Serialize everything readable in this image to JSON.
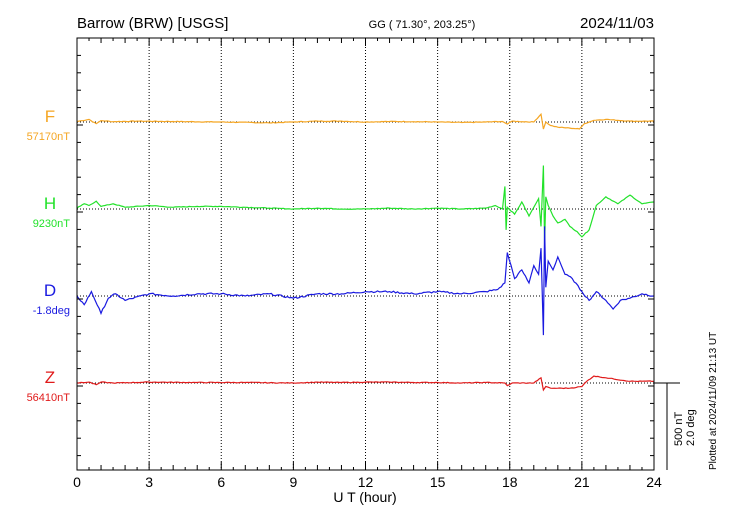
{
  "chart_data": {
    "type": "line",
    "title_left": "Barrow (BRW)  [USGS]",
    "title_center": "GG ( 71.30°, 203.25°)",
    "title_right": "2024/11/03",
    "xlabel": "U T (hour)",
    "xlim": [
      0,
      24
    ],
    "xticks": [
      0,
      3,
      6,
      9,
      12,
      15,
      18,
      21,
      24
    ],
    "xtick_labels": [
      "0",
      "3",
      "6",
      "9",
      "12",
      "15",
      "18",
      "21",
      "24"
    ],
    "grid_hours": [
      3,
      6,
      9,
      12,
      15,
      18,
      21
    ],
    "scale_label_1": "500 nT",
    "scale_label_2": "2.0 deg",
    "scale_nT": 500,
    "side_note": "Plotted at 2024/11/09 21:13 UT",
    "series": [
      {
        "name": "F",
        "color": "#f5a623",
        "baseline_label": "57170nT",
        "unit": "nT",
        "x": [
          0,
          0.5,
          0.8,
          1.0,
          1.5,
          2.5,
          4,
          6,
          8,
          9,
          10,
          11,
          12,
          13,
          14,
          15,
          16,
          17,
          17.7,
          17.9,
          18.1,
          18.5,
          19,
          19.3,
          19.4,
          19.5,
          19.7,
          20,
          20.5,
          20.9,
          21.1,
          21.5,
          22,
          23,
          24
        ],
        "values": [
          3,
          15,
          -10,
          8,
          2,
          5,
          3,
          0,
          -5,
          0,
          5,
          5,
          0,
          3,
          2,
          0,
          -3,
          0,
          3,
          -12,
          5,
          2,
          0,
          45,
          -40,
          0,
          -20,
          -30,
          -35,
          -40,
          -10,
          10,
          15,
          5,
          5
        ]
      },
      {
        "name": "H",
        "color": "#22e22a",
        "baseline_label": "9230nT",
        "unit": "nT",
        "x": [
          0,
          0.3,
          0.5,
          0.8,
          1.0,
          1.5,
          2,
          3,
          4,
          5,
          6,
          7,
          8,
          9,
          10,
          11,
          12,
          13,
          14,
          15,
          16,
          17,
          17.4,
          17.7,
          17.8,
          17.85,
          17.9,
          18.2,
          18.5,
          18.8,
          19.0,
          19.2,
          19.3,
          19.4,
          19.45,
          19.5,
          19.6,
          19.8,
          20,
          20.3,
          20.5,
          20.8,
          21,
          21.3,
          21.6,
          22,
          22.5,
          23,
          23.5,
          24
        ],
        "values": [
          5,
          30,
          20,
          45,
          15,
          30,
          10,
          20,
          10,
          15,
          15,
          10,
          5,
          0,
          5,
          0,
          0,
          5,
          0,
          5,
          0,
          5,
          20,
          0,
          130,
          -120,
          10,
          -30,
          40,
          -40,
          10,
          60,
          -100,
          250,
          -200,
          70,
          20,
          -40,
          -80,
          -60,
          -100,
          -130,
          -160,
          -120,
          20,
          70,
          30,
          80,
          30,
          40
        ]
      },
      {
        "name": "D",
        "color": "#1a1ae0",
        "baseline_label": "-1.8deg",
        "unit": "deg",
        "x": [
          0,
          0.3,
          0.6,
          1.0,
          1.3,
          1.6,
          2,
          3,
          4,
          5,
          6,
          7,
          8,
          9,
          10,
          11,
          12,
          13,
          14,
          15,
          16,
          17,
          17.5,
          17.8,
          17.9,
          18.2,
          18.5,
          18.8,
          19.0,
          19.2,
          19.3,
          19.4,
          19.45,
          19.5,
          19.6,
          19.8,
          20,
          20.3,
          20.6,
          21,
          21.3,
          21.6,
          22,
          22.3,
          22.6,
          23,
          23.5,
          24
        ],
        "values": [
          0,
          -0.2,
          0.1,
          -0.4,
          -0.05,
          0.05,
          -0.1,
          0.05,
          0,
          0.05,
          0.05,
          0,
          0.05,
          -0.05,
          0.05,
          0.05,
          0.1,
          0.1,
          0.05,
          0.1,
          0.05,
          0.1,
          0.15,
          0.3,
          1.0,
          0.4,
          0.6,
          0.3,
          0.7,
          0.5,
          1.1,
          -0.9,
          1.6,
          0.2,
          0.8,
          0.6,
          0.9,
          0.5,
          0.4,
          0.1,
          -0.1,
          0.1,
          -0.1,
          -0.3,
          -0.1,
          -0.05,
          0.05,
          0
        ]
      },
      {
        "name": "Z",
        "color": "#e01a1a",
        "baseline_label": "56410nT",
        "unit": "nT",
        "x": [
          0,
          0.5,
          0.8,
          1.0,
          1.5,
          3,
          5,
          7,
          9,
          10,
          11,
          12,
          13,
          14,
          15,
          16,
          17,
          17.8,
          17.9,
          18.1,
          19,
          19.3,
          19.4,
          19.5,
          19.7,
          20,
          20.5,
          21,
          21.2,
          21.5,
          22,
          23,
          24
        ],
        "values": [
          0,
          5,
          -10,
          5,
          0,
          5,
          3,
          3,
          0,
          5,
          3,
          5,
          5,
          3,
          3,
          0,
          3,
          0,
          -15,
          0,
          0,
          30,
          -40,
          -20,
          -30,
          -30,
          -30,
          -20,
          10,
          40,
          30,
          10,
          10
        ]
      }
    ]
  }
}
